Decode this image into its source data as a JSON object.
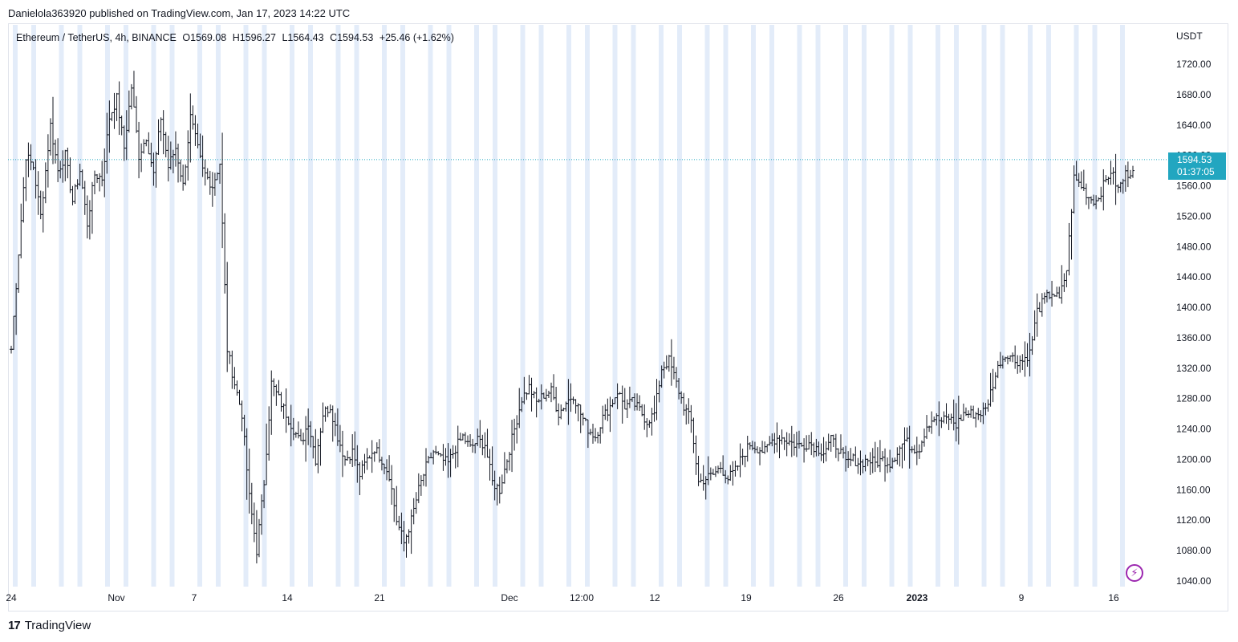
{
  "header": {
    "published": "Danielola363920 published on TradingView.com, Jan 17, 2023 14:22 UTC"
  },
  "legend": {
    "symbol": "Ethereum / TetherUS, 4h, BINANCE",
    "open": "O1569.08",
    "high": "H1596.27",
    "low": "L1564.43",
    "close": "C1594.53",
    "change": "+25.46 (+1.62%)"
  },
  "price_axis": {
    "currency": "USDT"
  },
  "price_tag": {
    "price": "1594.53",
    "countdown": "01:37:05"
  },
  "footer": {
    "brand": "TradingView",
    "logo": "tradingview-logo-icon"
  },
  "colors": {
    "bar": "#131722",
    "session_band": "#e3ecf9",
    "last_price": "#22a6c0",
    "accent": "#9c27b0"
  },
  "chart_data": {
    "type": "ohlc-bar",
    "title": "Ethereum / TetherUS, 4h, BINANCE",
    "ylabel": "USDT",
    "ylim": [
      1020,
      1740
    ],
    "y_ticks": [
      1040,
      1080,
      1120,
      1160,
      1200,
      1240,
      1280,
      1320,
      1360,
      1400,
      1440,
      1480,
      1520,
      1560,
      1600,
      1640,
      1680,
      1720
    ],
    "x_ticks": [
      "24",
      "Nov",
      "7",
      "14",
      "21",
      "Dec",
      "12:00",
      "12",
      "19",
      "26",
      "2023",
      "9",
      "16"
    ],
    "x_ticks_bold": [
      "2023"
    ],
    "last_price": 1594.53,
    "grid": false,
    "series": [
      {
        "path": [
          [
            0,
            1345
          ],
          [
            6,
            1600
          ],
          [
            9,
            1585
          ],
          [
            12,
            1520
          ],
          [
            16,
            1640
          ],
          [
            19,
            1580
          ],
          [
            22,
            1600
          ],
          [
            25,
            1540
          ],
          [
            28,
            1580
          ],
          [
            31,
            1510
          ],
          [
            34,
            1575
          ],
          [
            37,
            1570
          ],
          [
            40,
            1650
          ],
          [
            43,
            1675
          ],
          [
            46,
            1610
          ],
          [
            49,
            1690
          ],
          [
            52,
            1600
          ],
          [
            55,
            1625
          ],
          [
            58,
            1575
          ],
          [
            61,
            1650
          ],
          [
            64,
            1585
          ],
          [
            67,
            1610
          ],
          [
            70,
            1560
          ],
          [
            73,
            1650
          ],
          [
            78,
            1580
          ],
          [
            82,
            1560
          ],
          [
            85,
            1590
          ],
          [
            88,
            1345
          ],
          [
            91,
            1300
          ],
          [
            94,
            1260
          ],
          [
            97,
            1150
          ],
          [
            100,
            1080
          ],
          [
            103,
            1170
          ],
          [
            106,
            1300
          ],
          [
            109,
            1280
          ],
          [
            112,
            1260
          ],
          [
            115,
            1240
          ],
          [
            118,
            1220
          ],
          [
            121,
            1250
          ],
          [
            124,
            1200
          ],
          [
            127,
            1260
          ],
          [
            130,
            1270
          ],
          [
            133,
            1230
          ],
          [
            136,
            1200
          ],
          [
            139,
            1210
          ],
          [
            142,
            1180
          ],
          [
            145,
            1200
          ],
          [
            148,
            1215
          ],
          [
            151,
            1200
          ],
          [
            154,
            1180
          ],
          [
            157,
            1120
          ],
          [
            160,
            1090
          ],
          [
            163,
            1120
          ],
          [
            166,
            1160
          ],
          [
            169,
            1190
          ],
          [
            172,
            1210
          ],
          [
            175,
            1200
          ],
          [
            178,
            1195
          ],
          [
            181,
            1215
          ],
          [
            184,
            1230
          ],
          [
            187,
            1215
          ],
          [
            190,
            1225
          ],
          [
            193,
            1220
          ],
          [
            196,
            1170
          ],
          [
            199,
            1160
          ],
          [
            202,
            1200
          ],
          [
            205,
            1240
          ],
          [
            208,
            1280
          ],
          [
            211,
            1295
          ],
          [
            214,
            1275
          ],
          [
            217,
            1285
          ],
          [
            220,
            1290
          ],
          [
            223,
            1260
          ],
          [
            226,
            1275
          ],
          [
            229,
            1285
          ],
          [
            232,
            1260
          ],
          [
            235,
            1240
          ],
          [
            238,
            1230
          ],
          [
            241,
            1255
          ],
          [
            244,
            1270
          ],
          [
            247,
            1290
          ],
          [
            250,
            1270
          ],
          [
            253,
            1275
          ],
          [
            256,
            1265
          ],
          [
            259,
            1250
          ],
          [
            262,
            1260
          ],
          [
            265,
            1320
          ],
          [
            268,
            1330
          ],
          [
            271,
            1300
          ],
          [
            274,
            1270
          ],
          [
            277,
            1250
          ],
          [
            280,
            1170
          ],
          [
            283,
            1175
          ],
          [
            286,
            1180
          ],
          [
            289,
            1190
          ],
          [
            292,
            1175
          ],
          [
            295,
            1185
          ],
          [
            298,
            1205
          ],
          [
            301,
            1220
          ],
          [
            304,
            1215
          ],
          [
            307,
            1210
          ],
          [
            310,
            1225
          ],
          [
            313,
            1230
          ],
          [
            316,
            1225
          ],
          [
            319,
            1220
          ],
          [
            322,
            1218
          ],
          [
            325,
            1222
          ],
          [
            328,
            1215
          ],
          [
            331,
            1210
          ],
          [
            334,
            1225
          ],
          [
            337,
            1215
          ],
          [
            340,
            1195
          ],
          [
            343,
            1200
          ],
          [
            346,
            1195
          ],
          [
            349,
            1200
          ],
          [
            352,
            1195
          ],
          [
            355,
            1200
          ],
          [
            358,
            1195
          ],
          [
            361,
            1210
          ],
          [
            364,
            1225
          ],
          [
            367,
            1215
          ],
          [
            370,
            1215
          ],
          [
            373,
            1245
          ],
          [
            376,
            1255
          ],
          [
            379,
            1250
          ],
          [
            382,
            1255
          ],
          [
            385,
            1245
          ],
          [
            388,
            1260
          ],
          [
            391,
            1260
          ],
          [
            394,
            1260
          ],
          [
            397,
            1265
          ],
          [
            400,
            1300
          ],
          [
            403,
            1330
          ],
          [
            406,
            1340
          ],
          [
            409,
            1330
          ],
          [
            412,
            1330
          ],
          [
            415,
            1340
          ],
          [
            418,
            1395
          ],
          [
            421,
            1410
          ],
          [
            424,
            1420
          ],
          [
            427,
            1410
          ],
          [
            430,
            1450
          ],
          [
            433,
            1570
          ],
          [
            436,
            1560
          ],
          [
            439,
            1545
          ],
          [
            442,
            1540
          ],
          [
            445,
            1560
          ],
          [
            448,
            1580
          ],
          [
            451,
            1555
          ],
          [
            454,
            1575
          ],
          [
            457,
            1580
          ]
        ]
      }
    ]
  }
}
